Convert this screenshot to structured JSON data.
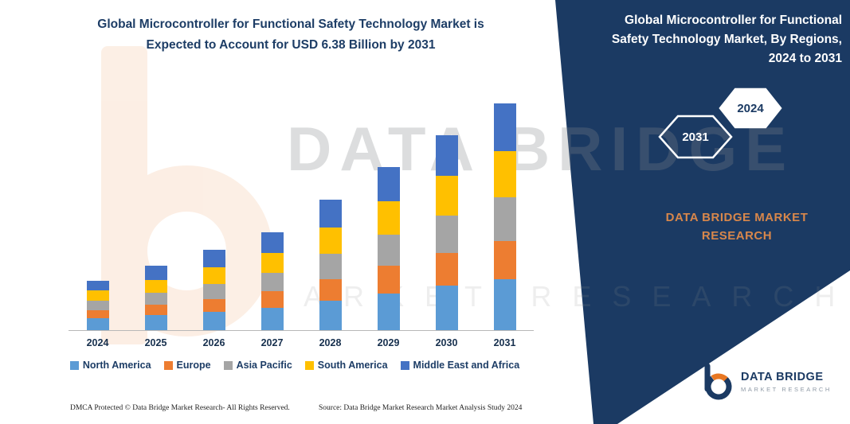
{
  "header": {
    "title_lines": [
      "Global Microcontroller for Functional Safety Technology Market is",
      "Expected to Account for USD 6.38 Billion by 2031"
    ]
  },
  "panel": {
    "title_lines": [
      "Global Microcontroller for Functional",
      "Safety Technology Market, By Regions,",
      "2024 to 2031"
    ],
    "hexagon_back_label": "2031",
    "hexagon_front_label": "2024",
    "brand_lines": [
      "DATA BRIDGE MARKET",
      "RESEARCH"
    ],
    "bg_color": "#1b3a63",
    "accent_text_color": "#d8874b"
  },
  "watermark": {
    "line1": "DATA BRIDGE",
    "line2": "MARKET RESEARCH"
  },
  "chart_data": {
    "type": "bar",
    "stacked": true,
    "title": "Global Microcontroller for Functional Safety Technology Market is Expected to Account for USD 6.38 Billion by 2031",
    "unit": "USD Billion",
    "categories": [
      "2024",
      "2025",
      "2026",
      "2027",
      "2028",
      "2029",
      "2030",
      "2031"
    ],
    "series": [
      {
        "name": "North America",
        "color": "#5B9BD5",
        "values": [
          0.33,
          0.42,
          0.51,
          0.63,
          0.84,
          1.04,
          1.25,
          1.44
        ]
      },
      {
        "name": "Europe",
        "color": "#ED7D31",
        "values": [
          0.23,
          0.3,
          0.37,
          0.46,
          0.6,
          0.77,
          0.93,
          1.07
        ]
      },
      {
        "name": "Asia Pacific",
        "color": "#A5A5A5",
        "values": [
          0.26,
          0.33,
          0.42,
          0.51,
          0.7,
          0.88,
          1.04,
          1.23
        ]
      },
      {
        "name": "South America",
        "color": "#FFC000",
        "values": [
          0.3,
          0.37,
          0.46,
          0.56,
          0.74,
          0.93,
          1.11,
          1.3
        ]
      },
      {
        "name": "Middle East and Africa",
        "color": "#4472C4",
        "values": [
          0.26,
          0.39,
          0.51,
          0.6,
          0.79,
          0.97,
          1.16,
          1.34
        ]
      }
    ],
    "totals_estimated": [
      1.38,
      1.81,
      2.27,
      2.76,
      3.67,
      4.59,
      5.49,
      6.38
    ],
    "ylim": [
      0,
      6.6
    ],
    "grid": false,
    "legend_position": "bottom"
  },
  "footer": {
    "dmca": "DMCA Protected © Data Bridge Market Research-  All Rights Reserved.",
    "source": "Source: Data Bridge Market Research  Market Analysis Study 2024"
  },
  "logo": {
    "title": "DATA BRIDGE",
    "subtitle": "MARKET RESEARCH"
  }
}
